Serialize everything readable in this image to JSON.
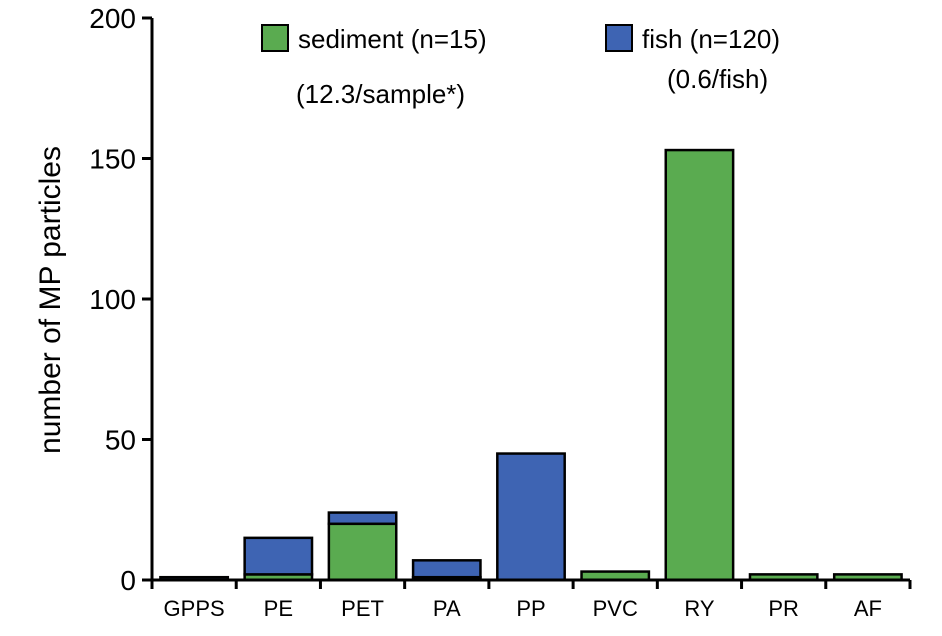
{
  "chart_data": {
    "type": "bar",
    "stacked": true,
    "title": "",
    "xlabel": "",
    "ylabel": "number of MP particles",
    "ylim": [
      0,
      200
    ],
    "yticks": [
      0,
      50,
      100,
      150,
      200
    ],
    "categories": [
      "GPPS",
      "PE",
      "PET",
      "PA",
      "PP",
      "PVC",
      "RY",
      "PR",
      "AF"
    ],
    "series": [
      {
        "name": "sediment (n=15)",
        "note": "(12.3/sample*)",
        "color": "#5aab50",
        "values": [
          0,
          2,
          20,
          1,
          0,
          3,
          153,
          2,
          2
        ]
      },
      {
        "name": "fish (n=120)",
        "note": "(0.6/fish)",
        "color": "#3e64b3",
        "values": [
          1,
          13,
          4,
          6,
          45,
          0,
          0,
          0,
          0
        ]
      }
    ],
    "legend": "top",
    "grid": false
  }
}
